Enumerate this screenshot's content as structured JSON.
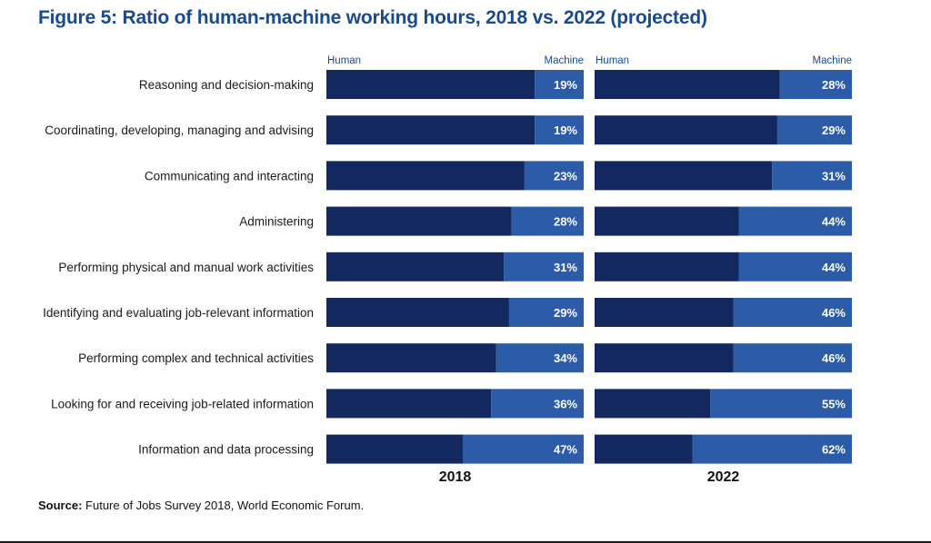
{
  "title": "Figure 5: Ratio of human-machine working hours, 2018 vs. 2022 (projected)",
  "source": {
    "label": "Source:",
    "text": "Future of Jobs Survey 2018, World Economic Forum."
  },
  "colors": {
    "human": "#12285e",
    "machine": "#2c5ba8",
    "title": "#1b4a8c",
    "panel_header": "#1b4a8c"
  },
  "chart_data": {
    "type": "bar",
    "stacked": true,
    "orientation": "horizontal",
    "title": "Figure 5: Ratio of human-machine working hours, 2018 vs. 2022 (projected)",
    "categories": [
      "Reasoning and decision-making",
      "Coordinating, developing, managing and advising",
      "Communicating and interacting",
      "Administering",
      "Performing physical and manual work activities",
      "Identifying and evaluating job-relevant information",
      "Performing complex and technical activities",
      "Looking for and receiving job-related information",
      "Information and data processing"
    ],
    "series_labels": {
      "left": "Human",
      "right": "Machine"
    },
    "panels": [
      {
        "year": "2018",
        "machine": [
          19,
          19,
          23,
          28,
          31,
          29,
          34,
          36,
          47
        ]
      },
      {
        "year": "2022",
        "machine": [
          28,
          29,
          31,
          44,
          44,
          46,
          46,
          55,
          62
        ]
      }
    ],
    "value_suffix": "%",
    "xlim": [
      0,
      100
    ]
  }
}
